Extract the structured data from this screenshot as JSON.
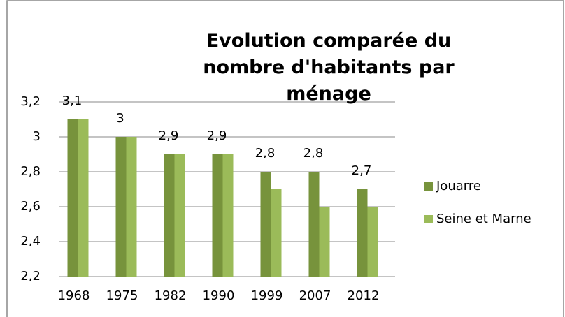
{
  "chart_data": {
    "type": "bar",
    "title": "Evolution comparée du nombre d'habitants par ménage",
    "categories": [
      "1968",
      "1975",
      "1982",
      "1990",
      "1999",
      "2007",
      "2012"
    ],
    "series": [
      {
        "name": "Jouarre",
        "color": "#77933c",
        "values": [
          3.1,
          3.0,
          2.9,
          2.9,
          2.8,
          2.8,
          2.7
        ],
        "value_labels": [
          "3,1",
          "3",
          "2,9",
          "2,9",
          "2,8",
          "2,8",
          "2,7"
        ]
      },
      {
        "name": "Seine et Marne",
        "color": "#9bbb59",
        "values": [
          3.1,
          3.0,
          2.9,
          2.9,
          2.7,
          2.6,
          2.6
        ]
      }
    ],
    "ylim": [
      2.2,
      3.2
    ],
    "yticks": [
      {
        "value": 2.2,
        "label": "2,2"
      },
      {
        "value": 2.4,
        "label": "2,4"
      },
      {
        "value": 2.6,
        "label": "2,6"
      },
      {
        "value": 2.8,
        "label": "2,8"
      },
      3,
      {
        "value": 3.2,
        "label": "3,2"
      }
    ],
    "grid": true,
    "legend": "right"
  }
}
